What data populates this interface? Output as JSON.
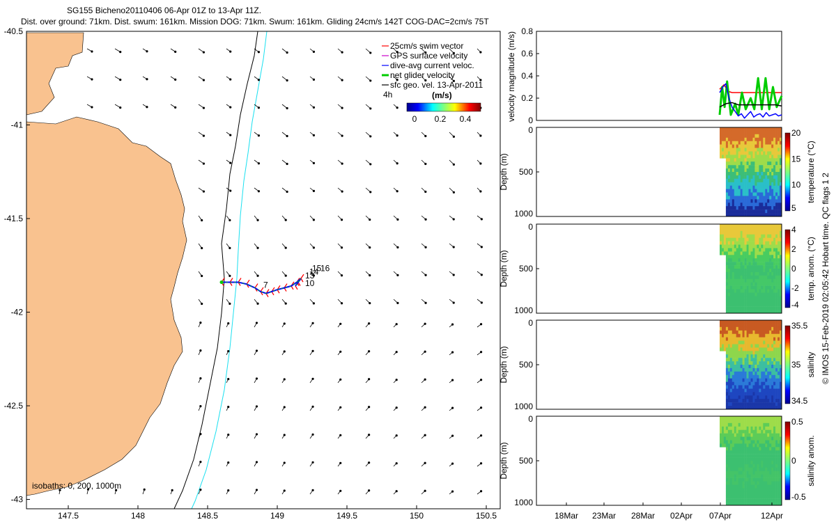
{
  "header": {
    "line1": "SG155 Bicheno20110406 06-Apr 01Z to 13-Apr 11Z.",
    "line2": "Dist. over ground: 71km. Dist. swum: 161km. Mission DOG: 71km. Swum: 161km. Gliding 24cm/s 142T COG-DAC=2cm/s 75T"
  },
  "side_note": "© IMOS 15-Feb-2019 02:05:42 Hobart time. QC flags 1  2",
  "colors": {
    "land": "#F9C28F",
    "isobath_200": "#000000",
    "isobath_1000": "#19E0F0",
    "swim_vector": "#FF0000",
    "gps_velocity": "#CC00CC",
    "dac_velocity": "#0000FF",
    "net_velocity": "#00CC00",
    "geo_velocity": "#000000"
  },
  "chart_data": [
    {
      "type": "scatter",
      "panel": "map",
      "xlim": [
        147.2,
        150.6
      ],
      "ylim": [
        -43.05,
        -40.5
      ],
      "x_ticks": [
        "147.5",
        "148",
        "148.5",
        "149",
        "149.5",
        "150",
        "150.5"
      ],
      "y_ticks": [
        "-40.5",
        "-41",
        "-41.5",
        "-42",
        "-42.5",
        "-43"
      ],
      "legend": {
        "placement": "top-right",
        "entries": [
          "25cm/s swim vector",
          "GPS surface velocity",
          "dive-avg current veloc.",
          "net glider velocity",
          "sfc geo. vel. 13-Apr-2011"
        ],
        "extra_label": "4h",
        "colorbar_title": "(m/s)",
        "colorbar_ticks": [
          "0",
          "0.2",
          "0.4"
        ]
      },
      "isobath_label": "isobaths: 0, 200, 1000m",
      "track": {
        "lon": [
          148.6,
          148.66,
          148.72,
          148.78,
          148.84,
          148.88,
          148.92,
          148.96,
          149.0,
          149.05,
          149.1,
          149.14,
          149.17,
          149.15,
          149.13
        ],
        "lat": [
          -41.84,
          -41.84,
          -41.84,
          -41.85,
          -41.87,
          -41.89,
          -41.9,
          -41.89,
          -41.88,
          -41.87,
          -41.86,
          -41.84,
          -41.82,
          -41.84,
          -41.86
        ]
      },
      "dive_labels": [
        {
          "text": "7",
          "lon": 148.9,
          "lat": -41.87
        },
        {
          "text": "10",
          "lon": 149.2,
          "lat": -41.86
        },
        {
          "text": "13",
          "lon": 149.2,
          "lat": -41.82
        },
        {
          "text": "14",
          "lon": 149.23,
          "lat": -41.8
        },
        {
          "text": "15",
          "lon": 149.25,
          "lat": -41.78
        },
        {
          "text": "16",
          "lon": 149.31,
          "lat": -41.78
        }
      ]
    },
    {
      "type": "line",
      "panel": "velocity",
      "ylabel": "velocity magnitude (m/s)",
      "ylim": [
        0,
        0.8
      ],
      "y_ticks": [
        "0",
        "0.2",
        "0.4",
        "0.6",
        "0.8"
      ],
      "series": [
        {
          "name": "swim",
          "color": "#FF0000",
          "x": [
            0.0,
            0.07,
            0.14,
            0.2,
            0.3,
            0.4,
            0.5,
            0.6,
            0.7,
            0.8,
            0.9,
            1.0
          ],
          "values": [
            0.28,
            0.32,
            0.26,
            0.25,
            0.25,
            0.25,
            0.25,
            0.25,
            0.25,
            0.25,
            0.25,
            0.25
          ]
        },
        {
          "name": "net",
          "color": "#00CC00",
          "x": [
            0.0,
            0.04,
            0.08,
            0.12,
            0.18,
            0.25,
            0.3,
            0.36,
            0.42,
            0.5,
            0.56,
            0.62,
            0.68,
            0.74,
            0.8,
            0.86,
            0.92,
            1.0
          ],
          "values": [
            0.05,
            0.3,
            0.12,
            0.35,
            0.05,
            0.15,
            0.05,
            0.25,
            0.1,
            0.2,
            0.1,
            0.38,
            0.1,
            0.38,
            0.1,
            0.3,
            0.12,
            0.22
          ]
        },
        {
          "name": "dive-avg",
          "color": "#0000FF",
          "x": [
            0.0,
            0.05,
            0.1,
            0.15,
            0.2,
            0.25,
            0.3,
            0.35,
            0.4,
            0.45,
            0.5,
            0.55,
            0.6,
            0.65,
            0.7,
            0.75,
            0.8,
            0.85,
            0.9,
            0.95,
            1.0
          ],
          "values": [
            0.25,
            0.3,
            0.33,
            0.2,
            0.12,
            0.08,
            0.04,
            0.06,
            0.02,
            0.05,
            0.08,
            0.03,
            0.05,
            0.06,
            0.03,
            0.07,
            0.04,
            0.05,
            0.06,
            0.04,
            0.05
          ]
        },
        {
          "name": "geo",
          "color": "#000000",
          "x": [
            0.0,
            0.1,
            0.2,
            0.3,
            0.4,
            0.5,
            0.6,
            0.7,
            0.8,
            0.9,
            1.0
          ],
          "values": [
            0.12,
            0.15,
            0.16,
            0.14,
            0.14,
            0.14,
            0.14,
            0.14,
            0.14,
            0.14,
            0.13
          ]
        }
      ]
    },
    {
      "type": "heatmap",
      "panel": "temperature",
      "ylabel": "Depth (m)",
      "y_ticks": [
        "0",
        "500",
        "1000"
      ],
      "colorbar_label": "temperature (°C)",
      "colorbar_ticks": [
        "20",
        "15",
        "10",
        "5"
      ],
      "palette": [
        "#D46A2A",
        "#E8C83A",
        "#9EDC4A",
        "#3CBE78",
        "#2ABFC8",
        "#2A6AD8",
        "#1A2C9A"
      ]
    },
    {
      "type": "heatmap",
      "panel": "temp_anomaly",
      "ylabel": "Depth (m)",
      "y_ticks": [
        "0",
        "500",
        "1000"
      ],
      "colorbar_label": "temp. anom. (°C)",
      "colorbar_ticks": [
        "4",
        "2",
        "0",
        "-2",
        "-4"
      ],
      "palette": [
        "#E8C83A",
        "#9EDC4A",
        "#48CC60",
        "#3CC070",
        "#44C868",
        "#3CC070",
        "#3CC070"
      ]
    },
    {
      "type": "heatmap",
      "panel": "salinity",
      "ylabel": "Depth (m)",
      "y_ticks": [
        "0",
        "500",
        "1000"
      ],
      "colorbar_label": "salinity",
      "colorbar_ticks": [
        "35.5",
        "35",
        "34.5"
      ],
      "palette": [
        "#C85A22",
        "#E8B82E",
        "#8ED64C",
        "#3CBFA0",
        "#2A7AD8",
        "#1E46C0",
        "#1A36A8"
      ]
    },
    {
      "type": "heatmap",
      "panel": "salinity_anomaly",
      "ylabel": "Depth (m)",
      "y_ticks": [
        "0",
        "500",
        "1000"
      ],
      "colorbar_label": "salinity anom.",
      "colorbar_ticks": [
        "0.5",
        "0",
        "-0.5"
      ],
      "palette": [
        "#9EDC4A",
        "#5CCC58",
        "#3CC070",
        "#3CC070",
        "#44C468",
        "#3CC070",
        "#3CC070"
      ]
    }
  ],
  "time_axis": {
    "labels": [
      "18Mar",
      "23Mar",
      "28Mar",
      "02Apr",
      "07Apr",
      "12Apr"
    ]
  }
}
